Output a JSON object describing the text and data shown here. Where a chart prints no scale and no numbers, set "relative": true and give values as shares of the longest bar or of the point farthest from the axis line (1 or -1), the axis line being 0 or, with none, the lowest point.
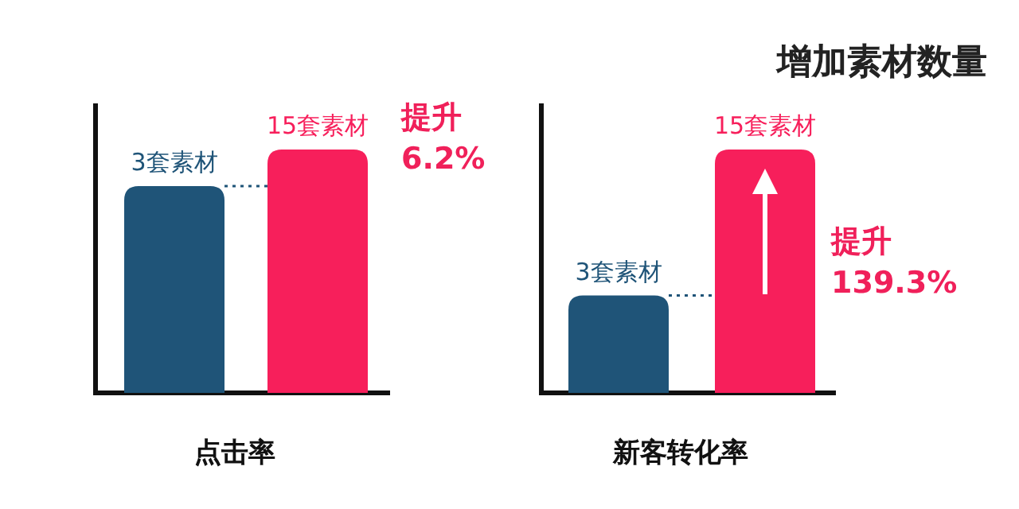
{
  "chart_data": [
    {
      "type": "bar",
      "xlabel": "点击率",
      "relative": true,
      "categories": [
        "3套素材",
        "15套素材"
      ],
      "values": [
        0.85,
        1
      ],
      "colors": [
        "#1f5478",
        "#f71f5b"
      ],
      "ref_lines": [
        {
          "axis": "y",
          "value": 0.85,
          "line_style": "dotted",
          "color": "#1f5478"
        }
      ],
      "annotations": [
        "提升",
        "6.2%"
      ]
    },
    {
      "type": "bar",
      "title": "增加素材数量",
      "xlabel": "新客转化率",
      "relative": true,
      "categories": [
        "3套素材",
        "15套素材"
      ],
      "values": [
        0.4,
        1
      ],
      "colors": [
        "#1f5478",
        "#f71f5b"
      ],
      "ref_lines": [
        {
          "axis": "y",
          "value": 0.4,
          "line_style": "dotted",
          "color": "#1f5478"
        }
      ],
      "annotations": [
        "提升",
        "139.3%"
      ]
    }
  ]
}
